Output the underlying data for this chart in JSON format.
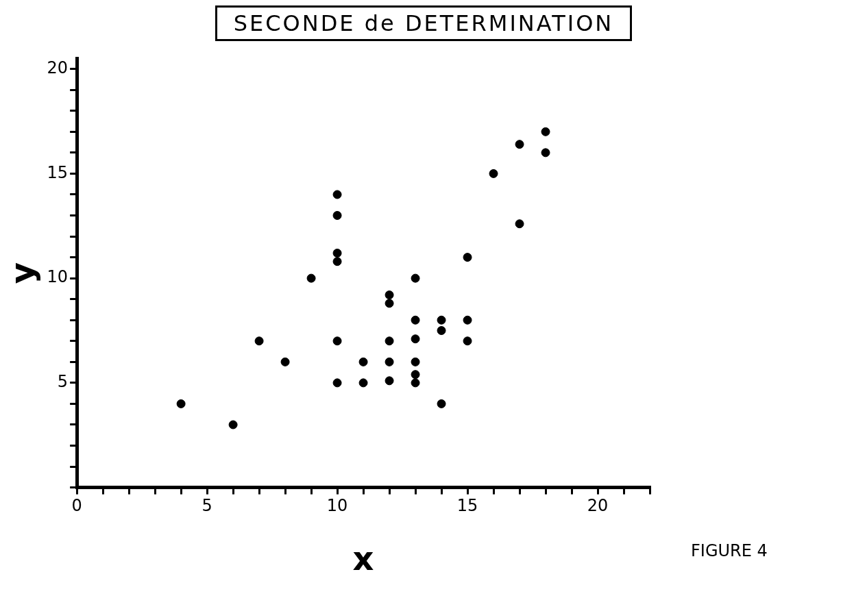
{
  "chart_data": {
    "type": "scatter",
    "title": "SECONDE de DETERMINATION",
    "xlabel": "x",
    "ylabel": "y",
    "annotations": [
      "FIGURE 4"
    ],
    "x": [
      4,
      6,
      7,
      8,
      9,
      10,
      10,
      10,
      10,
      10,
      10,
      11,
      11,
      12,
      12,
      12,
      12,
      12,
      13,
      13,
      13,
      13,
      13,
      13,
      14,
      14,
      14,
      15,
      15,
      15,
      16,
      17,
      17,
      18,
      18
    ],
    "values": [
      4,
      3,
      7,
      6,
      10,
      14,
      13,
      11.2,
      10.8,
      7,
      5,
      6,
      5,
      9.2,
      8.8,
      7,
      6,
      5.1,
      10,
      8,
      7.1,
      6,
      5.4,
      5,
      8,
      7.5,
      4,
      11,
      8,
      7,
      15,
      16.4,
      12.6,
      17,
      16
    ],
    "color": "#000000",
    "marker": "circle",
    "grid": false,
    "legend": false,
    "xlim": [
      0,
      22
    ],
    "ylim": [
      0,
      20.5
    ],
    "xticks": [
      0,
      {
        "value": 1,
        "label": null
      },
      {
        "value": 2,
        "label": null
      },
      {
        "value": 3,
        "label": null
      },
      {
        "value": 4,
        "label": null
      },
      5,
      {
        "value": 6,
        "label": null
      },
      {
        "value": 7,
        "label": null
      },
      {
        "value": 8,
        "label": null
      },
      {
        "value": 9,
        "label": null
      },
      10,
      {
        "value": 11,
        "label": null
      },
      {
        "value": 12,
        "label": null
      },
      {
        "value": 13,
        "label": null
      },
      {
        "value": 14,
        "label": null
      },
      15,
      {
        "value": 16,
        "label": null
      },
      {
        "value": 17,
        "label": null
      },
      {
        "value": 18,
        "label": null
      },
      {
        "value": 19,
        "label": null
      },
      20,
      {
        "value": 21,
        "label": null
      },
      {
        "value": 22,
        "label": null
      }
    ],
    "yticks": [
      {
        "value": 0,
        "label": null
      },
      {
        "value": 1,
        "label": null
      },
      {
        "value": 2,
        "label": null
      },
      {
        "value": 3,
        "label": null
      },
      {
        "value": 4,
        "label": null
      },
      5,
      {
        "value": 6,
        "label": null
      },
      {
        "value": 7,
        "label": null
      },
      {
        "value": 8,
        "label": null
      },
      {
        "value": 9,
        "label": null
      },
      10,
      {
        "value": 11,
        "label": null
      },
      {
        "value": 12,
        "label": null
      },
      {
        "value": 13,
        "label": null
      },
      {
        "value": 14,
        "label": null
      },
      15,
      {
        "value": 16,
        "label": null
      },
      {
        "value": 17,
        "label": null
      },
      {
        "value": 18,
        "label": null
      },
      {
        "value": 19,
        "label": null
      },
      20
    ]
  }
}
